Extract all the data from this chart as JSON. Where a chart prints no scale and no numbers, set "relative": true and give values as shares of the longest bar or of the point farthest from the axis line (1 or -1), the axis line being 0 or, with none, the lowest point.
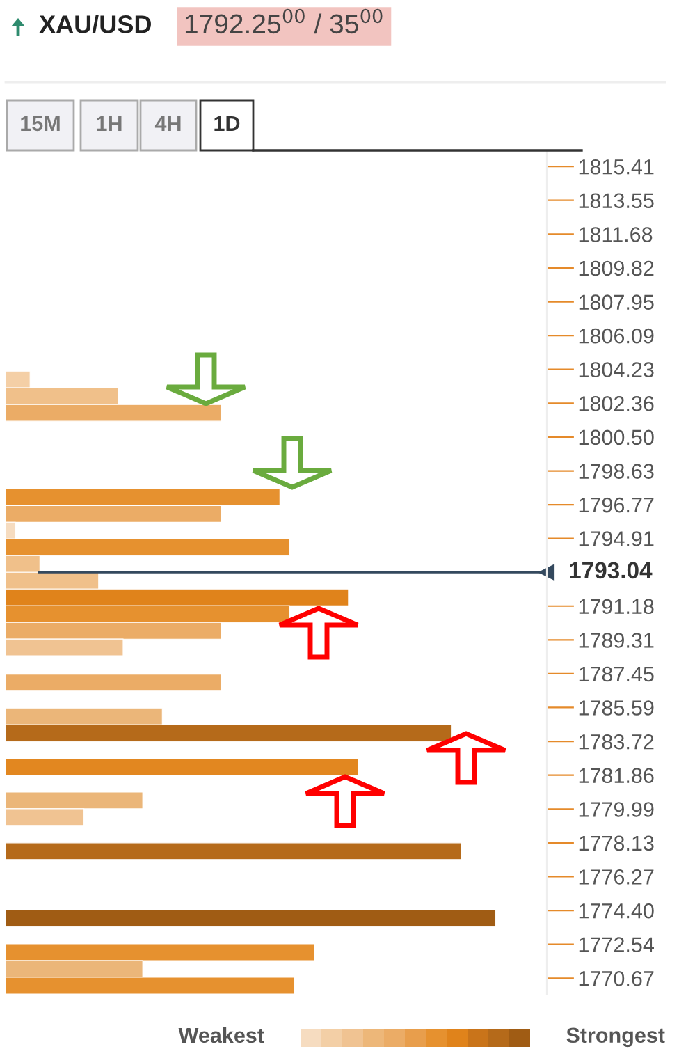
{
  "chart_data": {
    "type": "bar",
    "orientation": "horizontal",
    "relative": true,
    "title": "XAU/USD",
    "subtitle": "1792.25$^{00}$ / 35$^{00}$",
    "annotations": [
      "15M",
      "1H",
      "4H",
      "1D",
      "Weakest",
      "Strongest"
    ],
    "x": [
      1803.67,
      1802.75,
      1801.83,
      1797.18,
      1796.26,
      1795.34,
      1794.42,
      1793.5,
      1792.58,
      1791.66,
      1790.74,
      1789.82,
      1788.9,
      1786.96,
      1785.1,
      1784.18,
      1782.31,
      1780.47,
      1779.55,
      1777.67,
      1773.97,
      1772.1,
      1771.18,
      1770.26
    ],
    "values": [
      0.05,
      0.23,
      0.44,
      0.56,
      0.44,
      0.02,
      0.58,
      0.07,
      0.19,
      0.7,
      0.58,
      0.44,
      0.24,
      0.44,
      0.32,
      0.91,
      0.72,
      0.28,
      0.16,
      0.93,
      1,
      0.63,
      0.28,
      0.59
    ],
    "colors": [
      "#f4cfa6",
      "#f0c08a",
      "#ebac66",
      "#e6912f",
      "#ebac66",
      "#f6dcc0",
      "#e6912f",
      "#f0c08a",
      "#f0c08a",
      "#e0831b",
      "#e6912f",
      "#ebac66",
      "#f0c392",
      "#ebac66",
      "#ebb679",
      "#b56a1a",
      "#e28720",
      "#ebb679",
      "#f0c392",
      "#b56a1a",
      "#a05c14",
      "#e6912f",
      "#ebb679",
      "#e6912f"
    ],
    "ylim": [
      1769.8,
      1816.3
    ],
    "yticks": [
      1815.41,
      1813.55,
      1811.68,
      1809.82,
      1807.95,
      1806.09,
      1804.23,
      1802.36,
      {
        "value": 1800.5,
        "label": "1800.50"
      },
      1798.63,
      1796.77,
      1794.91,
      1791.18,
      1789.31,
      1787.45,
      1785.59,
      1783.72,
      1781.86,
      1779.99,
      1778.13,
      1776.27,
      {
        "value": 1774.4,
        "label": "1774.40"
      },
      1772.54,
      1770.67
    ],
    "ref_lines": [
      {
        "axis": "y",
        "value": 1793.04,
        "label": "1793.04",
        "color": "#34495e"
      }
    ],
    "grid": false,
    "legend": false
  }
}
